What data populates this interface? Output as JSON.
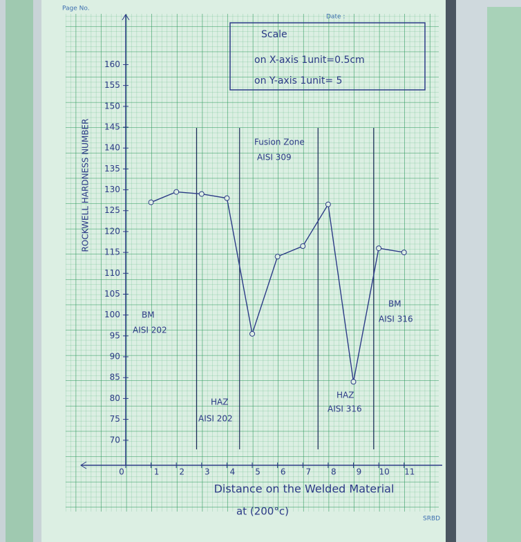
{
  "page": {
    "page_no": "Page No.",
    "date": "Date :",
    "footer": "SRBD"
  },
  "chart_data": {
    "type": "line",
    "y_label": "ROCKWELL HARDNESS NUMBER",
    "x_label": "Distance on the Welded Material",
    "x_label_2": "at (200°c)",
    "scale_box": [
      "Scale",
      "on X-axis 1unit=0.5cm",
      "on Y-axis 1unit= 5"
    ],
    "annotations": [
      "Fusion Zone",
      "AISI 309",
      "BM",
      "AISI 202",
      "HAZ",
      "AISI 202",
      "HAZ",
      "AISI 316",
      "BM",
      "AISI 316"
    ],
    "x": [
      1,
      2,
      3,
      4,
      5,
      6,
      7,
      8,
      9,
      10,
      11
    ],
    "values": [
      127,
      129.5,
      129,
      128,
      95.5,
      114,
      116.5,
      126.5,
      84,
      116,
      115
    ],
    "color": "#2b3a86",
    "zone_boundaries": [
      2.8,
      4.5,
      7.6,
      9.8
    ],
    "xlim": [
      -1.5,
      12.4
    ],
    "ylim": [
      64,
      172
    ],
    "xticks": [
      0,
      1,
      2,
      3,
      4,
      5,
      6,
      7,
      8,
      9,
      10,
      11
    ],
    "yticks": [
      70,
      75,
      80,
      85,
      90,
      95,
      100,
      105,
      110,
      115,
      120,
      125,
      130,
      135,
      140,
      145,
      150,
      155,
      160
    ],
    "grid": true
  }
}
